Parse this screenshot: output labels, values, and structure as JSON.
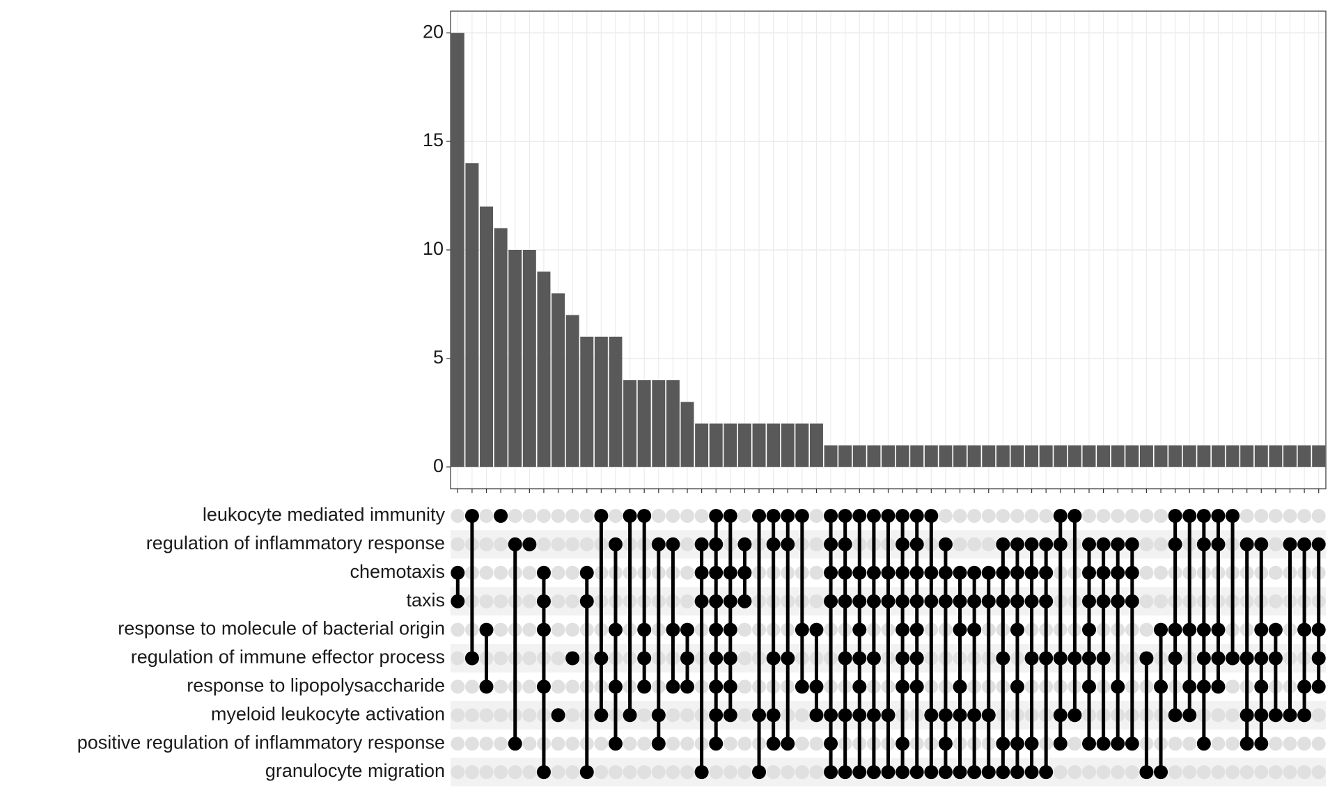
{
  "chart_data": {
    "type": "upset",
    "values": [
      20,
      14,
      12,
      11,
      10,
      10,
      9,
      8,
      7,
      6,
      6,
      6,
      4,
      4,
      4,
      4,
      3,
      2,
      2,
      2,
      2,
      2,
      2,
      2,
      2,
      2,
      1,
      1,
      1,
      1,
      1,
      1,
      1,
      1,
      1,
      1,
      1,
      1,
      1,
      1,
      1,
      1,
      1,
      1,
      1,
      1,
      1,
      1,
      1,
      1,
      1,
      1,
      1,
      1,
      1,
      1,
      1,
      1,
      1,
      1,
      1
    ],
    "color": "#595959",
    "ylim": [
      -1,
      21
    ],
    "yticks": [
      0,
      5,
      10,
      15,
      20
    ],
    "grid": true,
    "sets": [
      {
        "name": "leukocyte mediated immunity",
        "membership": [
          0,
          1,
          0,
          1,
          0,
          0,
          0,
          0,
          0,
          0,
          1,
          0,
          1,
          1,
          0,
          0,
          0,
          0,
          1,
          1,
          0,
          1,
          1,
          1,
          1,
          0,
          1,
          1,
          1,
          1,
          1,
          1,
          1,
          1,
          0,
          0,
          0,
          0,
          0,
          0,
          0,
          0,
          1,
          1,
          0,
          0,
          0,
          0,
          0,
          0,
          1,
          1,
          1,
          1,
          1,
          0,
          0,
          0,
          0,
          0,
          0
        ]
      },
      {
        "name": "regulation of inflammatory response",
        "membership": [
          0,
          0,
          0,
          0,
          1,
          1,
          0,
          0,
          0,
          0,
          0,
          1,
          0,
          0,
          1,
          1,
          0,
          1,
          1,
          0,
          1,
          0,
          1,
          1,
          0,
          0,
          1,
          1,
          0,
          0,
          0,
          1,
          1,
          0,
          1,
          0,
          0,
          0,
          1,
          1,
          1,
          1,
          1,
          0,
          1,
          1,
          1,
          1,
          0,
          0,
          1,
          0,
          1,
          1,
          0,
          1,
          1,
          0,
          1,
          1,
          1
        ]
      },
      {
        "name": "chemotaxis",
        "membership": [
          1,
          0,
          0,
          0,
          0,
          0,
          1,
          0,
          0,
          1,
          0,
          0,
          0,
          0,
          0,
          0,
          0,
          1,
          1,
          1,
          1,
          0,
          0,
          0,
          0,
          0,
          1,
          1,
          1,
          1,
          1,
          1,
          1,
          1,
          1,
          1,
          1,
          1,
          1,
          1,
          1,
          1,
          0,
          0,
          1,
          1,
          1,
          1,
          0,
          0,
          0,
          0,
          0,
          0,
          0,
          0,
          0,
          0,
          0,
          0,
          0
        ]
      },
      {
        "name": "taxis",
        "membership": [
          1,
          0,
          0,
          0,
          0,
          0,
          1,
          0,
          0,
          1,
          0,
          0,
          0,
          0,
          0,
          0,
          0,
          1,
          1,
          1,
          1,
          0,
          0,
          0,
          0,
          0,
          1,
          1,
          1,
          1,
          1,
          1,
          1,
          1,
          1,
          1,
          1,
          1,
          1,
          1,
          1,
          1,
          0,
          0,
          1,
          1,
          1,
          1,
          0,
          0,
          0,
          0,
          0,
          0,
          0,
          0,
          0,
          0,
          0,
          0,
          0
        ]
      },
      {
        "name": "response to molecule of bacterial origin",
        "membership": [
          0,
          0,
          1,
          0,
          0,
          0,
          1,
          0,
          0,
          0,
          0,
          1,
          0,
          1,
          0,
          1,
          1,
          0,
          1,
          1,
          0,
          0,
          0,
          0,
          1,
          1,
          0,
          0,
          1,
          0,
          0,
          1,
          1,
          0,
          0,
          1,
          1,
          0,
          0,
          1,
          0,
          0,
          0,
          0,
          1,
          0,
          0,
          0,
          0,
          1,
          1,
          1,
          1,
          1,
          0,
          0,
          1,
          1,
          0,
          1,
          1
        ]
      },
      {
        "name": "regulation of immune effector process",
        "membership": [
          0,
          1,
          0,
          0,
          0,
          0,
          0,
          0,
          1,
          0,
          1,
          0,
          0,
          1,
          0,
          0,
          1,
          0,
          1,
          1,
          0,
          0,
          1,
          1,
          0,
          0,
          0,
          1,
          1,
          1,
          0,
          1,
          1,
          0,
          0,
          0,
          0,
          0,
          1,
          0,
          1,
          1,
          1,
          1,
          1,
          1,
          0,
          0,
          1,
          0,
          1,
          0,
          1,
          1,
          1,
          1,
          1,
          1,
          0,
          0,
          1
        ]
      },
      {
        "name": "response to lipopolysaccharide",
        "membership": [
          0,
          0,
          1,
          0,
          0,
          0,
          1,
          0,
          0,
          0,
          0,
          1,
          0,
          1,
          0,
          1,
          1,
          0,
          1,
          1,
          0,
          0,
          0,
          0,
          1,
          1,
          0,
          0,
          1,
          0,
          0,
          1,
          1,
          0,
          0,
          1,
          0,
          0,
          0,
          1,
          0,
          0,
          0,
          0,
          1,
          0,
          1,
          0,
          0,
          1,
          0,
          1,
          1,
          1,
          0,
          0,
          1,
          0,
          0,
          1,
          1
        ]
      },
      {
        "name": "myeloid leukocyte activation",
        "membership": [
          0,
          0,
          0,
          0,
          0,
          0,
          0,
          1,
          0,
          0,
          1,
          0,
          1,
          0,
          1,
          0,
          0,
          0,
          1,
          1,
          0,
          1,
          1,
          0,
          0,
          1,
          1,
          1,
          1,
          1,
          1,
          0,
          0,
          1,
          1,
          1,
          1,
          1,
          0,
          0,
          0,
          0,
          1,
          1,
          0,
          0,
          0,
          0,
          0,
          0,
          1,
          1,
          0,
          0,
          0,
          1,
          1,
          1,
          1,
          1,
          0
        ]
      },
      {
        "name": "positive regulation of inflammatory response",
        "membership": [
          0,
          0,
          0,
          0,
          1,
          0,
          0,
          0,
          0,
          0,
          0,
          1,
          0,
          0,
          1,
          0,
          0,
          0,
          1,
          0,
          0,
          0,
          1,
          1,
          0,
          0,
          1,
          0,
          0,
          0,
          0,
          1,
          0,
          0,
          1,
          0,
          0,
          0,
          1,
          1,
          1,
          0,
          1,
          0,
          1,
          1,
          1,
          1,
          0,
          0,
          0,
          0,
          1,
          0,
          0,
          1,
          1,
          0,
          0,
          0,
          0
        ]
      },
      {
        "name": "granulocyte migration",
        "membership": [
          0,
          0,
          0,
          0,
          0,
          0,
          1,
          0,
          0,
          1,
          0,
          0,
          0,
          0,
          0,
          0,
          0,
          1,
          0,
          0,
          0,
          1,
          0,
          0,
          0,
          0,
          1,
          1,
          1,
          1,
          1,
          1,
          1,
          1,
          1,
          1,
          1,
          1,
          1,
          1,
          1,
          1,
          0,
          0,
          0,
          0,
          0,
          0,
          1,
          1,
          0,
          0,
          0,
          0,
          0,
          0,
          0,
          0,
          0,
          0,
          0
        ]
      }
    ]
  }
}
